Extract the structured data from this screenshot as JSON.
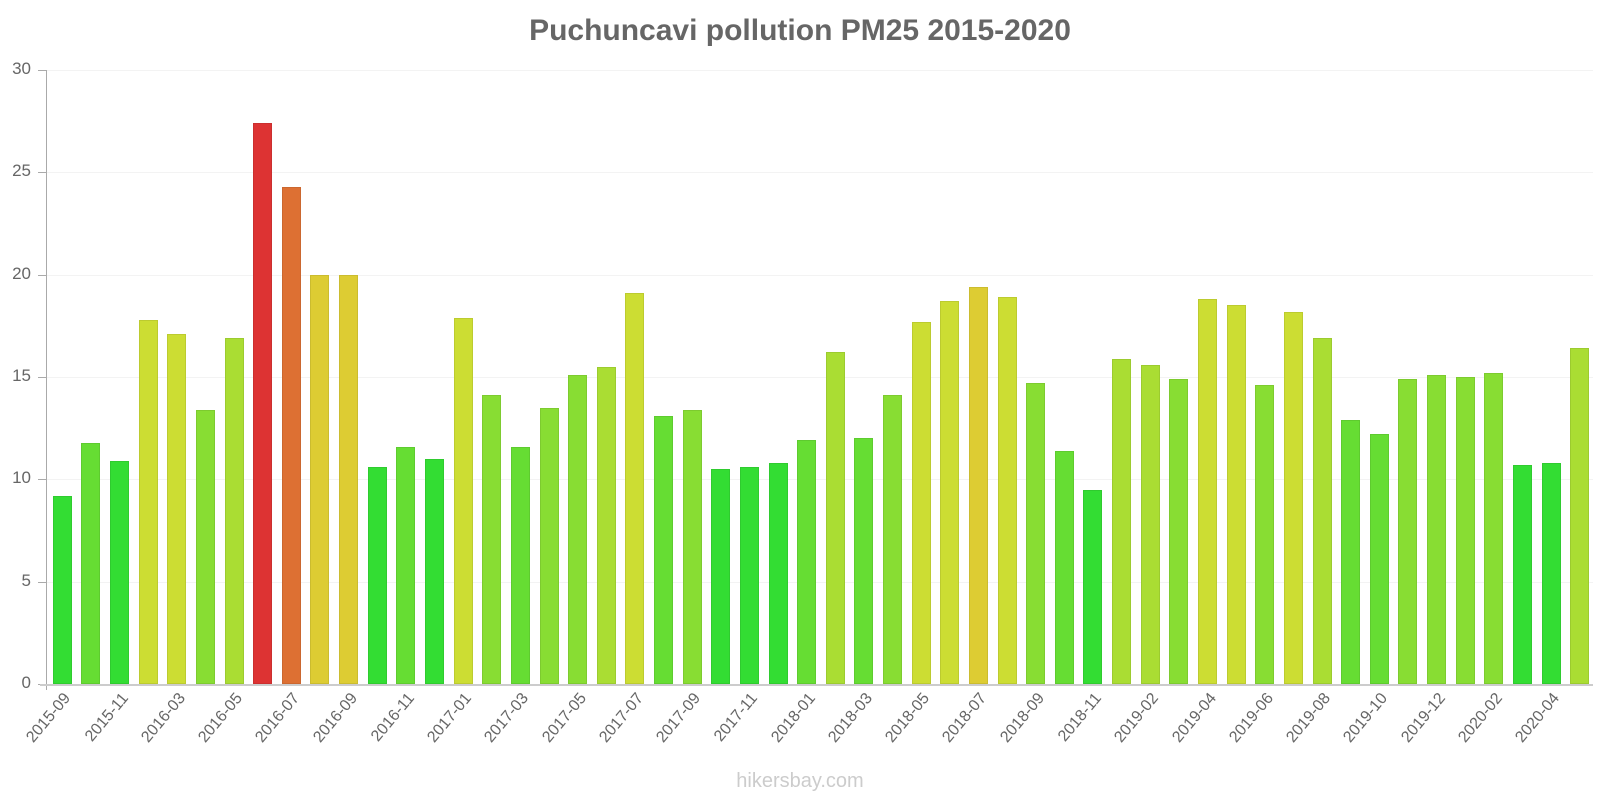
{
  "title": "Puchuncavi pollution PM25 2015-2020",
  "watermark": "hikersbay.com",
  "chart_data": {
    "type": "bar",
    "title": "Puchuncavi pollution PM25 2015-2020",
    "xlabel": "",
    "ylabel": "",
    "ylim": [
      0,
      30
    ],
    "yticks": [
      0,
      5,
      10,
      15,
      20,
      25,
      30
    ],
    "grid": true,
    "legend": null,
    "categories": [
      "2015-09",
      "2015-10",
      "2015-11",
      "2016-02",
      "2016-03",
      "2016-04",
      "2016-05",
      "2016-06",
      "2016-07",
      "2016-08",
      "2016-09",
      "2016-10",
      "2016-11",
      "2016-12",
      "2017-01",
      "2017-02",
      "2017-03",
      "2017-04",
      "2017-05",
      "2017-06",
      "2017-07",
      "2017-08",
      "2017-09",
      "2017-10",
      "2017-11",
      "2017-12",
      "2018-01",
      "2018-02",
      "2018-03",
      "2018-04",
      "2018-05",
      "2018-06",
      "2018-07",
      "2018-08",
      "2018-09",
      "2018-10",
      "2018-11",
      "2019-01",
      "2019-02",
      "2019-03",
      "2019-04",
      "2019-05",
      "2019-06",
      "2019-07",
      "2019-08",
      "2019-09",
      "2019-10",
      "2019-11",
      "2019-12",
      "2020-01",
      "2020-02",
      "2020-03",
      "2020-04",
      "2020-05"
    ],
    "visible_tick_labels": [
      "2015-09",
      "2015-11",
      "2016-03",
      "2016-05",
      "2016-07",
      "2016-09",
      "2016-11",
      "2017-01",
      "2017-03",
      "2017-05",
      "2017-07",
      "2017-09",
      "2017-11",
      "2018-01",
      "2018-03",
      "2018-05",
      "2018-07",
      "2018-09",
      "2018-11",
      "2019-02",
      "2019-04",
      "2019-06",
      "2019-08",
      "2019-10",
      "2019-12",
      "2020-02",
      "2020-04"
    ],
    "values": [
      9.2,
      11.8,
      10.9,
      17.8,
      17.1,
      13.4,
      16.9,
      27.4,
      24.3,
      20.0,
      20.0,
      10.6,
      11.6,
      11.0,
      17.9,
      14.1,
      11.6,
      13.5,
      15.1,
      15.5,
      19.1,
      13.1,
      13.4,
      10.5,
      10.6,
      10.8,
      11.9,
      16.2,
      12.0,
      14.1,
      17.7,
      18.7,
      19.4,
      18.9,
      14.7,
      11.4,
      9.5,
      15.9,
      15.6,
      14.9,
      18.8,
      18.5,
      14.6,
      18.2,
      16.9,
      12.9,
      12.2,
      14.9,
      15.1,
      15.0,
      15.2,
      10.7,
      10.8,
      16.4
    ]
  },
  "colors": {
    "title": "#666666",
    "axis_text": "#666666",
    "watermark": "#cccccc",
    "scale": [
      {
        "max": 11.3,
        "color": "#33dd33"
      },
      {
        "max": 13.2,
        "color": "#66dd33"
      },
      {
        "max": 15.3,
        "color": "#88dd33"
      },
      {
        "max": 17.0,
        "color": "#aadd33"
      },
      {
        "max": 19.2,
        "color": "#ccdd33"
      },
      {
        "max": 21.0,
        "color": "#ddcc33"
      },
      {
        "max": 25.0,
        "color": "#dd7033"
      },
      {
        "max": 99,
        "color": "#dd3333"
      }
    ]
  }
}
